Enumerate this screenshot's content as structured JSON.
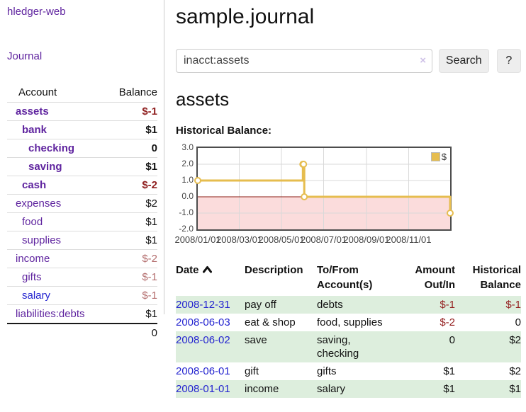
{
  "colors": {
    "purple_link": "#5f249f",
    "blue_link": "#2525d0",
    "negative_strong": "#8f1f1f",
    "negative_soft": "#b36d6d",
    "row_stripe_green": "#ddeedd",
    "chart_line_gold": "#e6bd4f",
    "chart_negative_region": "#fbdcdc",
    "chart_zero_line": "#8b1a10"
  },
  "sidebar": {
    "app_title": "hledger-web",
    "journal_link": "Journal",
    "account_header": "Account",
    "balance_header": "Balance",
    "accounts": [
      {
        "name": "assets",
        "balance": "$-1",
        "depth": 0,
        "bold": true,
        "name_style": "purple",
        "balance_style": "neg"
      },
      {
        "name": "bank",
        "balance": "$1",
        "depth": 1,
        "bold": true,
        "name_style": "purple",
        "balance_style": "pos"
      },
      {
        "name": "checking",
        "balance": "0",
        "depth": 2,
        "bold": true,
        "name_style": "purple",
        "balance_style": "pos"
      },
      {
        "name": "saving",
        "balance": "$1",
        "depth": 2,
        "bold": true,
        "name_style": "purple",
        "balance_style": "pos"
      },
      {
        "name": "cash",
        "balance": "$-2",
        "depth": 1,
        "bold": true,
        "name_style": "purple",
        "balance_style": "neg"
      },
      {
        "name": "expenses",
        "balance": "$2",
        "depth": 0,
        "bold": false,
        "name_style": "purple",
        "balance_style": "pos"
      },
      {
        "name": "food",
        "balance": "$1",
        "depth": 1,
        "bold": false,
        "name_style": "purple",
        "balance_style": "pos"
      },
      {
        "name": "supplies",
        "balance": "$1",
        "depth": 1,
        "bold": false,
        "name_style": "purple",
        "balance_style": "pos"
      },
      {
        "name": "income",
        "balance": "$-2",
        "depth": 0,
        "bold": false,
        "name_style": "purple",
        "balance_style": "negsoft"
      },
      {
        "name": "gifts",
        "balance": "$-1",
        "depth": 1,
        "bold": false,
        "name_style": "purple",
        "balance_style": "negsoft"
      },
      {
        "name": "salary",
        "balance": "$-1",
        "depth": 1,
        "bold": false,
        "name_style": "blue",
        "balance_style": "negsoft"
      },
      {
        "name": "liabilities:debts",
        "balance": "$1",
        "depth": 0,
        "bold": false,
        "name_style": "purple",
        "balance_style": "pos"
      }
    ],
    "total": "0"
  },
  "main": {
    "title": "sample.journal",
    "search": {
      "value": "inacct:assets",
      "clear_icon": "×",
      "button_label": "Search",
      "help_label": "?"
    },
    "account_heading": "assets",
    "chart_heading": "Historical Balance:"
  },
  "chart_data": {
    "type": "line",
    "step": "after",
    "title": "Historical Balance:",
    "series": [
      {
        "name": "$",
        "points": [
          {
            "date": "2008-01-01",
            "value": 1
          },
          {
            "date": "2008-06-01",
            "value": 2
          },
          {
            "date": "2008-06-02",
            "value": 2
          },
          {
            "date": "2008-06-03",
            "value": 0
          },
          {
            "date": "2008-12-31",
            "value": -1
          }
        ]
      }
    ],
    "x_range": [
      "2008-01-01",
      "2008-12-31"
    ],
    "ylim": [
      -2,
      3
    ],
    "yticks": [
      3,
      2,
      1,
      0,
      -1,
      -2
    ],
    "ytick_labels": [
      "3.0",
      "2.0",
      "1.0",
      "0.0",
      "-1.0",
      "-2.0"
    ],
    "xticks": [
      {
        "date": "2008-01-01",
        "label": "2008/01/01"
      },
      {
        "date": "2008-03-01",
        "label": "2008/03/01"
      },
      {
        "date": "2008-05-01",
        "label": "2008/05/01"
      },
      {
        "date": "2008-07-01",
        "label": "2008/07/01"
      },
      {
        "date": "2008-09-01",
        "label": "2008/09/01"
      },
      {
        "date": "2008-11-01",
        "label": "2008/11/01"
      }
    ],
    "legend_position": "top-right",
    "grid": true,
    "negative_region_shaded": true
  },
  "register": {
    "headers": {
      "date": "Date",
      "description": "Description",
      "tofrom_line1": "To/From",
      "tofrom_line2": "Account(s)",
      "amount_line1": "Amount",
      "amount_line2": "Out/In",
      "balance_line1": "Historical",
      "balance_line2": "Balance"
    },
    "sorted_by": "date-ascending",
    "rows": [
      {
        "date": "2008-12-31",
        "description": "pay off",
        "accounts": "debts",
        "amount": "$-1",
        "amount_neg": true,
        "balance": "$-1",
        "balance_neg": true
      },
      {
        "date": "2008-06-03",
        "description": "eat & shop",
        "accounts": "food, supplies",
        "amount": "$-2",
        "amount_neg": true,
        "balance": "0",
        "balance_neg": false
      },
      {
        "date": "2008-06-02",
        "description": "save",
        "accounts": "saving,\nchecking",
        "amount": "0",
        "amount_neg": false,
        "balance": "$2",
        "balance_neg": false
      },
      {
        "date": "2008-06-01",
        "description": "gift",
        "accounts": "gifts",
        "amount": "$1",
        "amount_neg": false,
        "balance": "$2",
        "balance_neg": false
      },
      {
        "date": "2008-01-01",
        "description": "income",
        "accounts": "salary",
        "amount": "$1",
        "amount_neg": false,
        "balance": "$1",
        "balance_neg": false
      }
    ]
  }
}
